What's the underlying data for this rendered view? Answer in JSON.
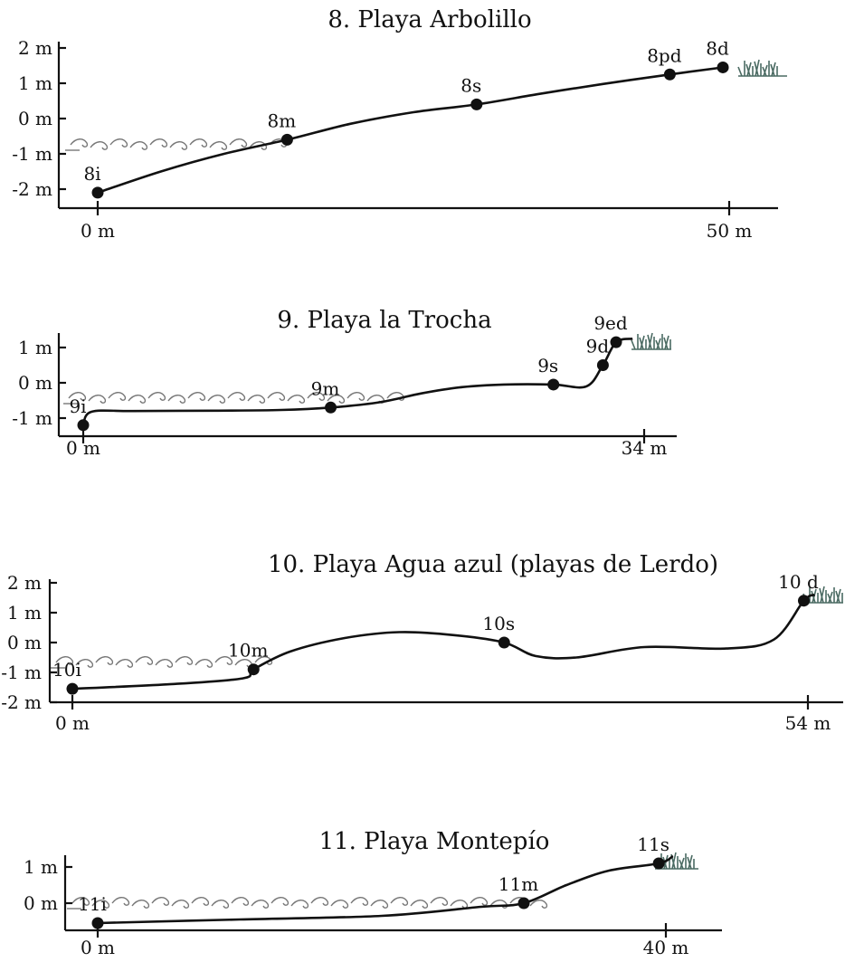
{
  "chart_data": [
    {
      "type": "line",
      "title": "8. Playa Arbolillo",
      "x_ticks": [
        {
          "value": 0,
          "label": "0 m"
        },
        {
          "value": 50,
          "label": "50 m"
        }
      ],
      "y_ticks": [
        {
          "value": 2,
          "label": "2 m"
        },
        {
          "value": 1,
          "label": "1 m"
        },
        {
          "value": 0,
          "label": "0 m"
        },
        {
          "value": -1,
          "label": "-1 m"
        },
        {
          "value": -2,
          "label": "-2 m"
        }
      ],
      "xlim": [
        0,
        50
      ],
      "ylim": [
        -2,
        2
      ],
      "points": [
        {
          "label": "8i",
          "x": 0,
          "y": -2.1
        },
        {
          "label": "8m",
          "x": 15,
          "y": -0.6
        },
        {
          "label": "8s",
          "x": 30,
          "y": 0.4
        },
        {
          "label": "8pd",
          "x": 45.3,
          "y": 1.25
        },
        {
          "label": "8d",
          "x": 49.5,
          "y": 1.45
        }
      ],
      "curve": [
        [
          0,
          -2.1
        ],
        [
          5,
          -1.5
        ],
        [
          10,
          -1.0
        ],
        [
          15,
          -0.6
        ],
        [
          20,
          -0.15
        ],
        [
          25,
          0.18
        ],
        [
          30,
          0.4
        ],
        [
          35,
          0.7
        ],
        [
          40,
          0.98
        ],
        [
          45.3,
          1.25
        ],
        [
          49.5,
          1.45
        ]
      ]
    },
    {
      "type": "line",
      "title": "9. Playa la Trocha",
      "x_ticks": [
        {
          "value": 0,
          "label": "0 m"
        },
        {
          "value": 34,
          "label": "34 m"
        }
      ],
      "y_ticks": [
        {
          "value": 1,
          "label": "1 m"
        },
        {
          "value": 0,
          "label": "0 m"
        },
        {
          "value": -1,
          "label": "-1 m"
        }
      ],
      "xlim": [
        0,
        34
      ],
      "ylim": [
        -1,
        1
      ],
      "points": [
        {
          "label": "9i",
          "x": 0,
          "y": -1.2
        },
        {
          "label": "9m",
          "x": 15,
          "y": -0.7
        },
        {
          "label": "9s",
          "x": 28.5,
          "y": -0.05
        },
        {
          "label": "9d",
          "x": 31.5,
          "y": 0.5
        },
        {
          "label": "9ed",
          "x": 32.3,
          "y": 1.15
        }
      ],
      "curve": [
        [
          0,
          -1.2
        ],
        [
          0.5,
          -0.82
        ],
        [
          3,
          -0.8
        ],
        [
          8,
          -0.79
        ],
        [
          12,
          -0.77
        ],
        [
          15,
          -0.7
        ],
        [
          18,
          -0.55
        ],
        [
          20.5,
          -0.3
        ],
        [
          23,
          -0.12
        ],
        [
          25.5,
          -0.05
        ],
        [
          28.5,
          -0.05
        ],
        [
          30.5,
          -0.1
        ],
        [
          31.5,
          0.5
        ],
        [
          32.3,
          1.15
        ],
        [
          33.3,
          1.25
        ]
      ]
    },
    {
      "type": "line",
      "title": "10. Playa Agua azul (playas de Lerdo)",
      "x_ticks": [
        {
          "value": 0,
          "label": "0 m"
        },
        {
          "value": 54,
          "label": "54 m"
        }
      ],
      "y_ticks": [
        {
          "value": 2,
          "label": "2 m"
        },
        {
          "value": 1,
          "label": "1 m"
        },
        {
          "value": 0,
          "label": "0 m"
        },
        {
          "value": -1,
          "label": "-1 m"
        },
        {
          "value": -2,
          "label": "-2 m"
        }
      ],
      "xlim": [
        0,
        54
      ],
      "ylim": [
        -2,
        2
      ],
      "points": [
        {
          "label": "10i",
          "x": 0,
          "y": -1.55
        },
        {
          "label": "10m",
          "x": 13.3,
          "y": -0.9
        },
        {
          "label": "10s",
          "x": 31.7,
          "y": 0.0
        },
        {
          "label": "10 d",
          "x": 53.7,
          "y": 1.4
        }
      ],
      "curve": [
        [
          0,
          -1.55
        ],
        [
          7,
          -1.4
        ],
        [
          12.5,
          -1.2
        ],
        [
          13.3,
          -0.9
        ],
        [
          16,
          -0.3
        ],
        [
          20,
          0.15
        ],
        [
          24,
          0.35
        ],
        [
          28,
          0.25
        ],
        [
          31.7,
          0.0
        ],
        [
          34,
          -0.45
        ],
        [
          37,
          -0.5
        ],
        [
          42,
          -0.15
        ],
        [
          48,
          -0.2
        ],
        [
          51.5,
          0.1
        ],
        [
          53.7,
          1.4
        ],
        [
          54.5,
          1.6
        ]
      ]
    },
    {
      "type": "line",
      "title": "11. Playa Montepío",
      "x_ticks": [
        {
          "value": 0,
          "label": "0 m"
        },
        {
          "value": 40,
          "label": "40 m"
        }
      ],
      "y_ticks": [
        {
          "value": 1,
          "label": "1 m"
        },
        {
          "value": 0,
          "label": "0 m"
        }
      ],
      "xlim": [
        0,
        40
      ],
      "ylim": [
        0,
        1
      ],
      "points": [
        {
          "label": "11i",
          "x": 0,
          "y": -0.55
        },
        {
          "label": "11m",
          "x": 30,
          "y": 0.0
        },
        {
          "label": "11s",
          "x": 39.5,
          "y": 1.1
        }
      ],
      "curve": [
        [
          0,
          -0.55
        ],
        [
          10,
          -0.45
        ],
        [
          20,
          -0.35
        ],
        [
          27,
          -0.1
        ],
        [
          30,
          0.0
        ],
        [
          33,
          0.5
        ],
        [
          36,
          0.9
        ],
        [
          39.5,
          1.1
        ],
        [
          40.5,
          1.3
        ]
      ]
    }
  ]
}
